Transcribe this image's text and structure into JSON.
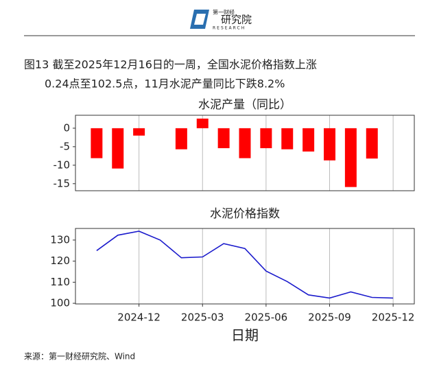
{
  "header": {
    "logo_top": "第一财经",
    "logo_main": "研究院",
    "logo_sub": "RESEARCH"
  },
  "caption": [
    "图13  截至2025年12月16日的一周，全国水泥价格指数上涨",
    "0.24点至102.5点，11月水泥产量同比下跌8.2%"
  ],
  "chart_data": [
    {
      "type": "bar",
      "title": "水泥产量（同比）",
      "color": "#ff0000",
      "x": [
        "2024-10",
        "2024-11",
        "2024-12",
        "2025-02",
        "2025-03",
        "2025-04",
        "2025-05",
        "2025-06",
        "2025-07",
        "2025-08",
        "2025-09",
        "2025-10",
        "2025-11"
      ],
      "values": [
        -8.1,
        -10.9,
        -2.0,
        -5.7,
        2.6,
        -5.4,
        -8.1,
        -5.4,
        -5.7,
        -6.3,
        -8.7,
        -15.9,
        -8.2
      ],
      "xlim": [
        "2024-09",
        "2026-01"
      ],
      "xticks": [
        "2024-12",
        "2025-03",
        "2025-06",
        "2025-09",
        "2025-12"
      ],
      "ylim": [
        -16.9,
        3.5
      ],
      "yticks": [
        -15,
        -10,
        -5,
        0
      ],
      "grid": true
    },
    {
      "type": "line",
      "title": "水泥价格指数",
      "xlabel": "日期",
      "color": "#1a1acc",
      "x": [
        "2024-10",
        "2024-11",
        "2024-12",
        "2025-01",
        "2025-02",
        "2025-03",
        "2025-04",
        "2025-05",
        "2025-06",
        "2025-07",
        "2025-08",
        "2025-09",
        "2025-10",
        "2025-11",
        "2025-12"
      ],
      "values": [
        125,
        132.3,
        134.2,
        130,
        121.6,
        122,
        128.3,
        126,
        115.3,
        110.3,
        104,
        102.5,
        105.4,
        102.8,
        102.5
      ],
      "xlim": [
        "2024-09",
        "2026-01"
      ],
      "xticks": [
        "2024-12",
        "2025-03",
        "2025-06",
        "2025-09",
        "2025-12"
      ],
      "ylim": [
        99.7,
        135.5
      ],
      "yticks": [
        100,
        110,
        120,
        130
      ],
      "grid": true
    }
  ],
  "source": "来源：第一财经研究院、Wind"
}
